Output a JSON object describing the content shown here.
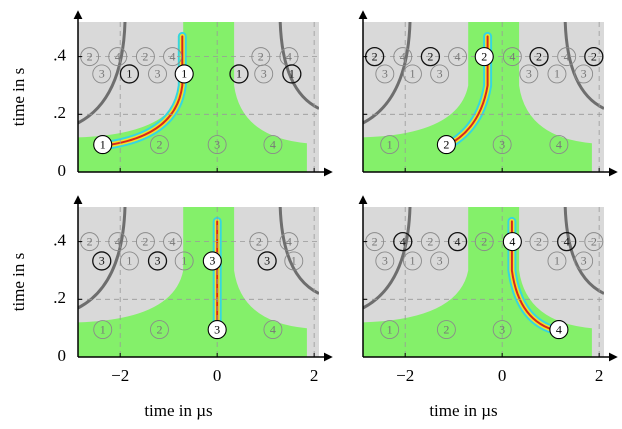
{
  "chart_data": [
    {
      "type": "image",
      "ylabel": "time in s",
      "xlim": [
        -2.87,
        2.1
      ],
      "ylim": [
        0,
        0.52
      ],
      "xticks": [
        -2,
        0,
        2
      ],
      "yticks": [
        0,
        {
          "value": 0.2,
          "label": ".2"
        },
        {
          "value": 0.4,
          "label": ".4"
        }
      ],
      "grid": true,
      "annotations": [
        {
          "text": "2",
          "x": -2.63,
          "y": 0.4,
          "style": "faint"
        },
        {
          "text": "4",
          "x": -2.05,
          "y": 0.4,
          "style": "faint"
        },
        {
          "text": "2",
          "x": -1.48,
          "y": 0.4,
          "style": "faint"
        },
        {
          "text": "4",
          "x": -0.92,
          "y": 0.4,
          "style": "faint"
        },
        {
          "text": "2",
          "x": 0.9,
          "y": 0.4,
          "style": "faint"
        },
        {
          "text": "4",
          "x": 1.48,
          "y": 0.4,
          "style": "faint"
        },
        {
          "text": "3",
          "x": -2.38,
          "y": 0.34,
          "style": "faint"
        },
        {
          "text": "1",
          "x": -1.81,
          "y": 0.34,
          "style": "dark"
        },
        {
          "text": "3",
          "x": -1.23,
          "y": 0.34,
          "style": "faint"
        },
        {
          "text": "1",
          "x": -0.68,
          "y": 0.34,
          "style": "white"
        },
        {
          "text": "1",
          "x": 0.45,
          "y": 0.34,
          "style": "dark"
        },
        {
          "text": "3",
          "x": 0.96,
          "y": 0.34,
          "style": "faint"
        },
        {
          "text": "1",
          "x": 1.54,
          "y": 0.34,
          "style": "dark"
        },
        {
          "text": "1",
          "x": -2.36,
          "y": 0.095,
          "style": "white"
        },
        {
          "text": "2",
          "x": -1.19,
          "y": 0.095,
          "style": "faint"
        },
        {
          "text": "3",
          "x": 0,
          "y": 0.095,
          "style": "faint"
        },
        {
          "text": "4",
          "x": 1.15,
          "y": 0.095,
          "style": "faint"
        }
      ]
    },
    {
      "type": "image",
      "xlim": [
        -2.87,
        2.1
      ],
      "ylim": [
        0,
        0.52
      ],
      "xticks": [
        -2,
        0,
        2
      ],
      "yticks": [
        0,
        0.2,
        0.4
      ],
      "grid": true,
      "annotations": [
        {
          "text": "2",
          "x": -2.63,
          "y": 0.4,
          "style": "dark"
        },
        {
          "text": "4",
          "x": -2.05,
          "y": 0.4,
          "style": "faint"
        },
        {
          "text": "2",
          "x": -1.48,
          "y": 0.4,
          "style": "dark"
        },
        {
          "text": "4",
          "x": -0.92,
          "y": 0.4,
          "style": "faint"
        },
        {
          "text": "2",
          "x": -0.37,
          "y": 0.4,
          "style": "white"
        },
        {
          "text": "4",
          "x": 0.21,
          "y": 0.4,
          "style": "faint"
        },
        {
          "text": "2",
          "x": 0.76,
          "y": 0.4,
          "style": "dark"
        },
        {
          "text": "4",
          "x": 1.33,
          "y": 0.4,
          "style": "faint"
        },
        {
          "text": "2",
          "x": 1.89,
          "y": 0.4,
          "style": "dark"
        },
        {
          "text": "3",
          "x": -2.42,
          "y": 0.34,
          "style": "faint"
        },
        {
          "text": "1",
          "x": -1.85,
          "y": 0.34,
          "style": "faint"
        },
        {
          "text": "3",
          "x": -1.29,
          "y": 0.34,
          "style": "faint"
        },
        {
          "text": "3",
          "x": 0.55,
          "y": 0.34,
          "style": "faint"
        },
        {
          "text": "1",
          "x": 1.13,
          "y": 0.34,
          "style": "faint"
        },
        {
          "text": "3",
          "x": 1.68,
          "y": 0.34,
          "style": "faint"
        },
        {
          "text": "1",
          "x": -2.32,
          "y": 0.095,
          "style": "faint"
        },
        {
          "text": "2",
          "x": -1.15,
          "y": 0.095,
          "style": "white"
        },
        {
          "text": "3",
          "x": 0,
          "y": 0.095,
          "style": "faint"
        },
        {
          "text": "4",
          "x": 1.17,
          "y": 0.095,
          "style": "faint"
        }
      ]
    },
    {
      "type": "image",
      "ylabel": "time in s",
      "xlabel": "time in µs",
      "xlim": [
        -2.87,
        2.1
      ],
      "ylim": [
        0,
        0.52
      ],
      "xticks": [
        {
          "value": -2,
          "label": "−2"
        },
        0,
        2
      ],
      "yticks": [
        0,
        {
          "value": 0.2,
          "label": ".2"
        },
        {
          "value": 0.4,
          "label": ".4"
        }
      ],
      "grid": true,
      "annotations": [
        {
          "text": "2",
          "x": -2.63,
          "y": 0.4,
          "style": "faint"
        },
        {
          "text": "4",
          "x": -2.05,
          "y": 0.4,
          "style": "faint"
        },
        {
          "text": "2",
          "x": -1.48,
          "y": 0.4,
          "style": "faint"
        },
        {
          "text": "4",
          "x": -0.92,
          "y": 0.4,
          "style": "faint"
        },
        {
          "text": "2",
          "x": 0.86,
          "y": 0.4,
          "style": "faint"
        },
        {
          "text": "4",
          "x": 1.48,
          "y": 0.4,
          "style": "faint"
        },
        {
          "text": "3",
          "x": -2.38,
          "y": 0.333,
          "style": "dark"
        },
        {
          "text": "1",
          "x": -1.81,
          "y": 0.333,
          "style": "faint"
        },
        {
          "text": "3",
          "x": -1.23,
          "y": 0.333,
          "style": "dark"
        },
        {
          "text": "1",
          "x": -0.68,
          "y": 0.333,
          "style": "faint"
        },
        {
          "text": "3",
          "x": -0.1,
          "y": 0.333,
          "style": "white"
        },
        {
          "text": "3",
          "x": 1.03,
          "y": 0.333,
          "style": "dark"
        },
        {
          "text": "1",
          "x": 1.58,
          "y": 0.333,
          "style": "faint"
        },
        {
          "text": "1",
          "x": -2.36,
          "y": 0.095,
          "style": "faint"
        },
        {
          "text": "2",
          "x": -1.19,
          "y": 0.095,
          "style": "faint"
        },
        {
          "text": "3",
          "x": 0,
          "y": 0.095,
          "style": "white"
        },
        {
          "text": "4",
          "x": 1.15,
          "y": 0.095,
          "style": "faint"
        }
      ]
    },
    {
      "type": "image",
      "xlabel": "time in µs",
      "xlim": [
        -2.87,
        2.1
      ],
      "ylim": [
        0,
        0.52
      ],
      "xticks": [
        {
          "value": -2,
          "label": "−2"
        },
        0,
        2
      ],
      "yticks": [
        0,
        0.2,
        0.4
      ],
      "grid": true,
      "annotations": [
        {
          "text": "2",
          "x": -2.63,
          "y": 0.4,
          "style": "faint"
        },
        {
          "text": "4",
          "x": -2.05,
          "y": 0.4,
          "style": "dark"
        },
        {
          "text": "2",
          "x": -1.48,
          "y": 0.4,
          "style": "faint"
        },
        {
          "text": "4",
          "x": -0.92,
          "y": 0.4,
          "style": "dark"
        },
        {
          "text": "2",
          "x": -0.37,
          "y": 0.4,
          "style": "faint"
        },
        {
          "text": "4",
          "x": 0.21,
          "y": 0.4,
          "style": "white"
        },
        {
          "text": "2",
          "x": 0.76,
          "y": 0.4,
          "style": "faint"
        },
        {
          "text": "4",
          "x": 1.33,
          "y": 0.4,
          "style": "dark"
        },
        {
          "text": "2",
          "x": 1.89,
          "y": 0.4,
          "style": "faint"
        },
        {
          "text": "3",
          "x": -2.42,
          "y": 0.333,
          "style": "faint"
        },
        {
          "text": "1",
          "x": -1.85,
          "y": 0.333,
          "style": "faint"
        },
        {
          "text": "3",
          "x": -1.29,
          "y": 0.333,
          "style": "faint"
        },
        {
          "text": "1",
          "x": 1.13,
          "y": 0.333,
          "style": "faint"
        },
        {
          "text": "3",
          "x": 1.68,
          "y": 0.333,
          "style": "faint"
        },
        {
          "text": "1",
          "x": -2.32,
          "y": 0.095,
          "style": "faint"
        },
        {
          "text": "2",
          "x": -1.15,
          "y": 0.095,
          "style": "faint"
        },
        {
          "text": "3",
          "x": 0,
          "y": 0.095,
          "style": "faint"
        },
        {
          "text": "4",
          "x": 1.17,
          "y": 0.095,
          "style": "white"
        }
      ]
    }
  ]
}
